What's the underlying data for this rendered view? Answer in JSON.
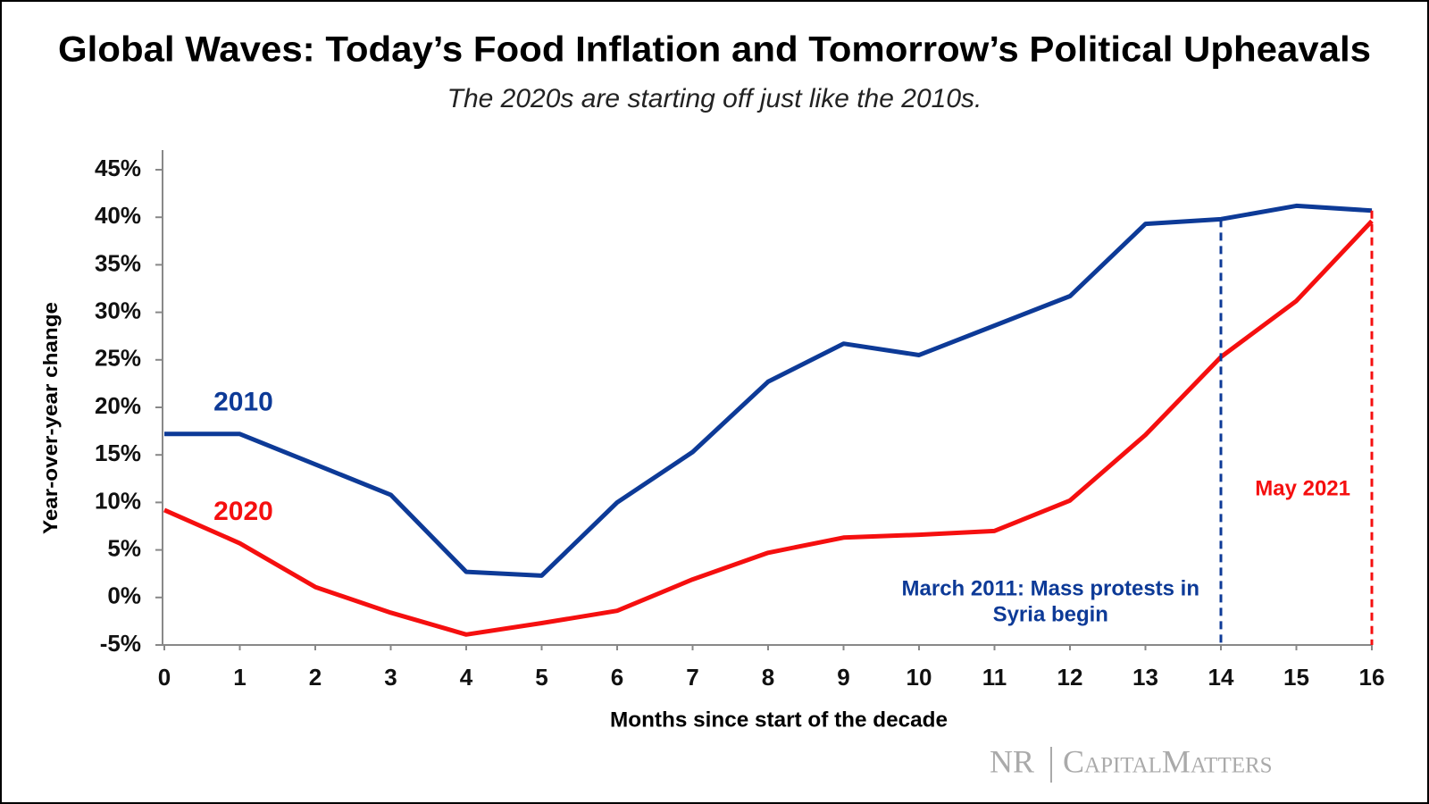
{
  "chart_data": {
    "type": "line",
    "title": "Global Waves: Today’s Food Inflation and Tomorrow’s Political Upheavals",
    "subtitle": "The 2020s are starting off just like the 2010s.",
    "x_label": "Months since start of the decade",
    "y_label": "Year-over-year change",
    "x": [
      0,
      1,
      2,
      3,
      4,
      5,
      6,
      7,
      8,
      9,
      10,
      11,
      12,
      13,
      14,
      15,
      16
    ],
    "xlim": [
      0,
      16
    ],
    "xticks": [
      0,
      1,
      2,
      3,
      4,
      5,
      6,
      7,
      8,
      9,
      10,
      11,
      12,
      13,
      14,
      15,
      16
    ],
    "ylim": [
      -5,
      45
    ],
    "yticks": [
      {
        "value": -5,
        "label": "-5%"
      },
      {
        "value": 0,
        "label": "0%"
      },
      {
        "value": 5,
        "label": "5%"
      },
      {
        "value": 10,
        "label": "10%"
      },
      {
        "value": 15,
        "label": "15%"
      },
      {
        "value": 20,
        "label": "20%"
      },
      {
        "value": 25,
        "label": "25%"
      },
      {
        "value": 30,
        "label": "30%"
      },
      {
        "value": 35,
        "label": "35%"
      },
      {
        "value": 40,
        "label": "40%"
      },
      {
        "value": 45,
        "label": "45%"
      }
    ],
    "grid": false,
    "series": [
      {
        "name": "2010",
        "color": "#0d3a97",
        "values": [
          17.2,
          17.2,
          14,
          10.8,
          2.7,
          2.3,
          10,
          15.3,
          22.7,
          26.7,
          25.5,
          28.6,
          31.7,
          39.3,
          39.8,
          41.2,
          40.7
        ]
      },
      {
        "name": "2020",
        "color": "#f50f0f",
        "values": [
          9.2,
          5.7,
          1.1,
          -1.6,
          -3.9,
          -2.7,
          -1.4,
          1.9,
          4.7,
          6.3,
          6.6,
          7.0,
          10.2,
          17.1,
          25.3,
          31.2,
          39.6
        ]
      }
    ],
    "annotations": [
      {
        "x": 14,
        "color": "#0d3a97",
        "text": [
          "March 2011: Mass protests in",
          "Syria begin"
        ]
      },
      {
        "x": 16,
        "color": "#f50f0f",
        "text": [
          "May 2021"
        ]
      }
    ],
    "source": [
      "NR",
      "CapitalMatters"
    ]
  }
}
